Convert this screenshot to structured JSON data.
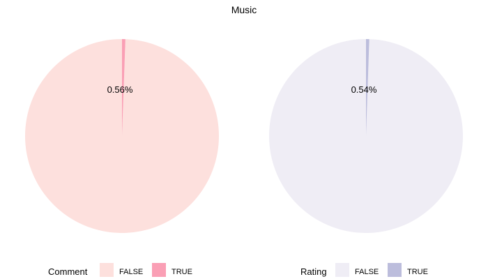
{
  "chart_data": [
    {
      "type": "pie",
      "title": "Music",
      "legend_title": "Comment",
      "legend_position": "bottom",
      "slices": [
        {
          "label": "FALSE",
          "value": 99.44,
          "color": "#fde0dd"
        },
        {
          "label": "TRUE",
          "value": 0.56,
          "color": "#fa9fb5"
        }
      ],
      "annotation": "0.56%"
    },
    {
      "type": "pie",
      "title": "",
      "legend_title": "Rating",
      "legend_position": "bottom",
      "slices": [
        {
          "label": "FALSE",
          "value": 99.46,
          "color": "#efedf5"
        },
        {
          "label": "TRUE",
          "value": 0.54,
          "color": "#bcbddc"
        }
      ],
      "annotation": "0.54%"
    }
  ]
}
